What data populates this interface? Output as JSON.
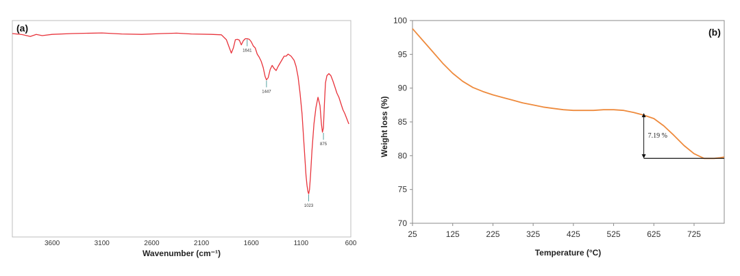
{
  "chart_data": [
    {
      "type": "line",
      "panel_label": "(a)",
      "xlabel": "Wavenumber (cm⁻¹)",
      "ylabel": "",
      "xlim": [
        4000,
        600
      ],
      "x_reversed": true,
      "y_axis_labels": false,
      "tick_labels": [
        "3600",
        "3100",
        "2600",
        "2100",
        "1600",
        "1100",
        "600"
      ],
      "series": [
        {
          "color": "#e8323a",
          "x": [
            4000,
            3900,
            3820,
            3760,
            3700,
            3600,
            3400,
            3100,
            2900,
            2700,
            2500,
            2350,
            2200,
            2000,
            1900,
            1850,
            1800,
            1780,
            1760,
            1740,
            1720,
            1700,
            1680,
            1660,
            1640,
            1620,
            1600,
            1580,
            1560,
            1540,
            1520,
            1500,
            1480,
            1460,
            1447,
            1430,
            1410,
            1390,
            1370,
            1350,
            1330,
            1300,
            1270,
            1250,
            1230,
            1200,
            1170,
            1150,
            1130,
            1110,
            1090,
            1070,
            1050,
            1040,
            1030,
            1023,
            1015,
            1005,
            990,
            970,
            950,
            930,
            910,
            895,
            885,
            875,
            865,
            855,
            840,
            820,
            800,
            780,
            760,
            740,
            720,
            700,
            680,
            660,
            640,
            620
          ],
          "y": [
            99.0,
            98.5,
            97.6,
            98.6,
            98.0,
            98.6,
            99.0,
            99.3,
            98.8,
            98.6,
            99.0,
            99.2,
            98.8,
            98.6,
            98.4,
            96.0,
            89.5,
            92.0,
            96.0,
            96.2,
            95.8,
            93.5,
            95.5,
            96.5,
            96.5,
            96.2,
            95.0,
            93.0,
            92.0,
            89.0,
            87.5,
            85.5,
            82.5,
            78.0,
            76.5,
            77.5,
            81.5,
            83.5,
            82.0,
            81.0,
            83.0,
            85.5,
            88.0,
            88.0,
            89.0,
            88.0,
            86.0,
            83.0,
            78.0,
            70.0,
            60.0,
            45.0,
            30.0,
            25.0,
            22.0,
            21.0,
            23.0,
            30.0,
            42.0,
            55.0,
            63.0,
            68.0,
            64.0,
            55.0,
            51.0,
            53.0,
            65.0,
            75.0,
            78.5,
            79.5,
            78.5,
            76.0,
            73.0,
            70.0,
            68.0,
            65.0,
            62.0,
            60.0,
            57.5,
            55.0
          ]
        }
      ],
      "annotations": [
        {
          "label": "1641",
          "x": 1641,
          "y": 96.5
        },
        {
          "label": "1447",
          "x": 1447,
          "y": 76.5
        },
        {
          "label": "1023",
          "x": 1023,
          "y": 21.0
        },
        {
          "label": "875",
          "x": 875,
          "y": 51.0
        }
      ]
    },
    {
      "type": "line",
      "panel_label": "(b)",
      "xlabel": "Temperature (°C)",
      "ylabel": "Weight loss (%)",
      "xlim": [
        25,
        800
      ],
      "ylim": [
        70,
        100
      ],
      "xticks": [
        25,
        125,
        225,
        325,
        425,
        525,
        625,
        725
      ],
      "yticks": [
        70,
        75,
        80,
        85,
        90,
        95,
        100
      ],
      "series": [
        {
          "color": "#ee8a3c",
          "x": [
            25,
            50,
            75,
            100,
            125,
            150,
            175,
            200,
            225,
            250,
            275,
            300,
            325,
            350,
            375,
            400,
            425,
            450,
            475,
            500,
            525,
            550,
            575,
            600,
            625,
            650,
            675,
            700,
            725,
            750,
            760,
            775,
            790,
            800
          ],
          "y": [
            98.8,
            97.1,
            95.4,
            93.7,
            92.2,
            91.0,
            90.1,
            89.5,
            89.0,
            88.6,
            88.2,
            87.8,
            87.5,
            87.2,
            87.0,
            86.8,
            86.7,
            86.7,
            86.7,
            86.8,
            86.8,
            86.7,
            86.4,
            86.0,
            85.5,
            84.4,
            83.0,
            81.5,
            80.3,
            79.6,
            79.6,
            79.6,
            79.7,
            79.8
          ]
        }
      ],
      "annotations": [
        {
          "label": "7.19 %",
          "x_start": 600,
          "y_top": 86.3,
          "y_bottom": 79.6,
          "x_end": 800
        }
      ]
    }
  ]
}
